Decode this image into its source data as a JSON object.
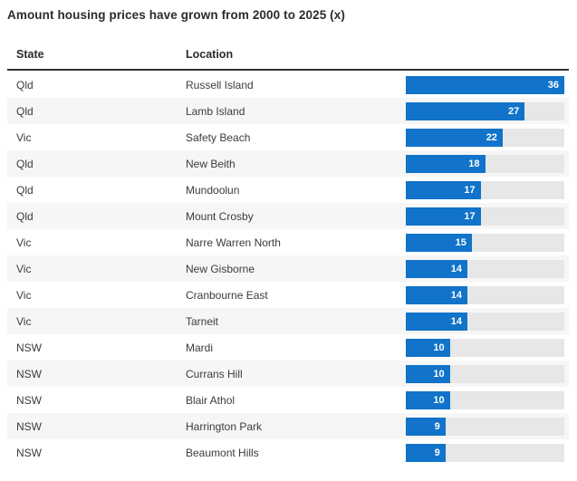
{
  "title": "Amount housing prices have grown from 2000 to 2025 (x)",
  "table": {
    "headers": {
      "state": "State",
      "location": "Location"
    },
    "rows": [
      {
        "state": "Qld",
        "location": "Russell Island",
        "value": 36
      },
      {
        "state": "Qld",
        "location": "Lamb Island",
        "value": 27
      },
      {
        "state": "Vic",
        "location": "Safety Beach",
        "value": 22
      },
      {
        "state": "Qld",
        "location": "New Beith",
        "value": 18
      },
      {
        "state": "Qld",
        "location": "Mundoolun",
        "value": 17
      },
      {
        "state": "Qld",
        "location": "Mount Crosby",
        "value": 17
      },
      {
        "state": "Vic",
        "location": "Narre Warren North",
        "value": 15
      },
      {
        "state": "Vic",
        "location": "New Gisborne",
        "value": 14
      },
      {
        "state": "Vic",
        "location": "Cranbourne East",
        "value": 14
      },
      {
        "state": "Vic",
        "location": "Tarneit",
        "value": 14
      },
      {
        "state": "NSW",
        "location": "Mardi",
        "value": 10
      },
      {
        "state": "NSW",
        "location": "Currans Hill",
        "value": 10
      },
      {
        "state": "NSW",
        "location": "Blair Athol",
        "value": 10
      },
      {
        "state": "NSW",
        "location": "Harrington Park",
        "value": 9
      },
      {
        "state": "NSW",
        "location": "Beaumont Hills",
        "value": 9
      }
    ]
  },
  "colors": {
    "bar": "#1173c9",
    "track": "#e7e7e7",
    "row_alt": "#f6f6f6",
    "header_rule": "#333333",
    "text": "#3b3b3b",
    "heading": "#2b2b2b"
  },
  "chart_data": {
    "type": "bar",
    "orientation": "horizontal",
    "title": "Amount housing prices have grown from 2000 to 2025 (x)",
    "categories": [
      "Russell Island",
      "Lamb Island",
      "Safety Beach",
      "New Beith",
      "Mundoolun",
      "Mount Crosby",
      "Narre Warren North",
      "New Gisborne",
      "Cranbourne East",
      "Tarneit",
      "Mardi",
      "Currans Hill",
      "Blair Athol",
      "Harrington Park",
      "Beaumont Hills"
    ],
    "groups": [
      "Qld",
      "Qld",
      "Vic",
      "Qld",
      "Qld",
      "Qld",
      "Vic",
      "Vic",
      "Vic",
      "Vic",
      "NSW",
      "NSW",
      "NSW",
      "NSW",
      "NSW"
    ],
    "values": [
      36,
      27,
      22,
      18,
      17,
      17,
      15,
      14,
      14,
      14,
      10,
      10,
      10,
      9,
      9
    ],
    "xlabel": "",
    "ylabel": "",
    "xlim": [
      0,
      36
    ],
    "value_labels": "inside-end",
    "legend": false,
    "grid": false
  }
}
